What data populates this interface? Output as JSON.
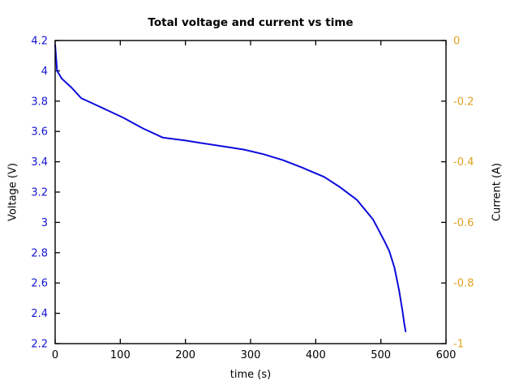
{
  "title": "Total voltage and current vs time",
  "colors": {
    "voltage_axis": "#1414d2",
    "current_axis": "#e0a11e",
    "curve": "#0b0bdc",
    "axis_frame": "#000000",
    "text": "#000000",
    "background": "#ffffff"
  },
  "chart_data": {
    "type": "line",
    "title": "Total voltage and current vs time",
    "xlabel": "time (s)",
    "ylabel_left": "Voltage (V)",
    "ylabel_right": "Current (A)",
    "xlim": [
      0,
      600
    ],
    "x_ticks": [
      0,
      100,
      200,
      300,
      400,
      500,
      600
    ],
    "x_tick_labels": [
      "0",
      "100",
      "200",
      "300",
      "400",
      "500",
      "600"
    ],
    "ylim_left": [
      2.2,
      4.2
    ],
    "y_ticks_left": [
      2.2,
      2.4,
      2.6,
      2.8,
      3.0,
      3.2,
      3.4,
      3.6,
      3.8,
      4.0,
      4.2
    ],
    "y_tick_labels_left": [
      "2.2",
      "2.4",
      "2.6",
      "2.8",
      "3",
      "3.2",
      "3.4",
      "3.6",
      "3.8",
      "4",
      "4.2"
    ],
    "ylim_right": [
      -1,
      0
    ],
    "y_ticks_right": [
      -1,
      -0.8,
      -0.6,
      -0.4,
      -0.2,
      0
    ],
    "y_tick_labels_right": [
      "-1",
      "-0.8",
      "-0.6",
      "-0.4",
      "-0.2",
      "0"
    ],
    "grid": false,
    "legend": "none",
    "border_box": true,
    "ticks_direction": "in",
    "series": [
      {
        "name": "Total voltage",
        "axis": "left",
        "color": "#0b0bdc",
        "x": [
          0,
          3,
          10,
          25,
          40,
          60,
          80,
          105,
          135,
          165,
          200,
          230,
          260,
          290,
          320,
          350,
          380,
          413,
          438,
          463,
          488,
          505,
          513,
          521,
          528,
          533,
          536,
          538
        ],
        "y": [
          4.17,
          4.0,
          3.95,
          3.89,
          3.82,
          3.78,
          3.74,
          3.69,
          3.62,
          3.56,
          3.54,
          3.52,
          3.5,
          3.48,
          3.45,
          3.41,
          3.36,
          3.3,
          3.23,
          3.15,
          3.02,
          2.88,
          2.81,
          2.7,
          2.55,
          2.42,
          2.33,
          2.28
        ]
      }
    ]
  }
}
